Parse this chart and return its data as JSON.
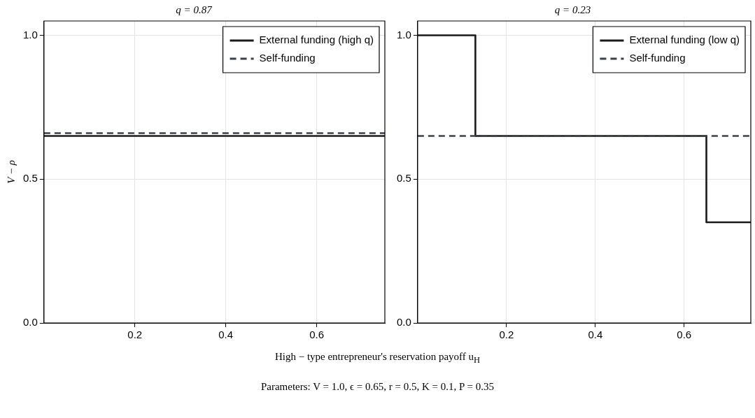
{
  "chart_data": [
    {
      "type": "line",
      "title": "q = 0.87",
      "ylabel": "V − ρ",
      "xlabel": "High − type entrepreneur's reservation payoff u$_{H}$",
      "annotations": [
        "Parameters:  V = 1.0, ϵ = 0.65, r = 0.5, K = 0.1, P = 0.35"
      ],
      "xlim": [
        0,
        0.75
      ],
      "ylim": [
        0,
        1.05
      ],
      "xticks": [
        0.2,
        0.4,
        0.6
      ],
      "yticks": [
        {
          "value": 0,
          "label": "0.0"
        },
        {
          "value": 0.5,
          "label": "0.5"
        },
        {
          "value": 1,
          "label": "1.0"
        }
      ],
      "grid": true,
      "legend": "top right",
      "marker": "none",
      "series": [
        {
          "name": "External funding (high q)",
          "color": "#1a1a1a",
          "x": [
            0,
            0.75
          ],
          "values": [
            0.65,
            0.65
          ],
          "line_style": "solid"
        },
        {
          "name": "Self-funding",
          "color": "#3b4149",
          "x": [
            0,
            0.75
          ],
          "values": [
            0.66,
            0.66
          ],
          "line_style": "dashed"
        }
      ]
    },
    {
      "type": "line",
      "title": "q = 0.23",
      "xlim": [
        0,
        0.75
      ],
      "ylim": [
        0,
        1.05
      ],
      "xticks": [
        0.2,
        0.4,
        0.6
      ],
      "yticks": [
        {
          "value": 0,
          "label": "0.0"
        },
        {
          "value": 0.5,
          "label": "0.5"
        },
        {
          "value": 1,
          "label": "1.0"
        }
      ],
      "grid": true,
      "legend": "top right",
      "marker": "none",
      "series": [
        {
          "name": "External funding (low q)",
          "type": "step",
          "color": "#1a1a1a",
          "x": [
            0,
            0.13,
            0.65,
            0.75
          ],
          "values": [
            1,
            0.65,
            0.35,
            0.35
          ],
          "line_style": "solid"
        },
        {
          "name": "Self-funding",
          "color": "#3b4149",
          "x": [
            0,
            0.75
          ],
          "values": [
            0.65,
            0.65
          ],
          "line_style": "dashed"
        }
      ]
    }
  ]
}
